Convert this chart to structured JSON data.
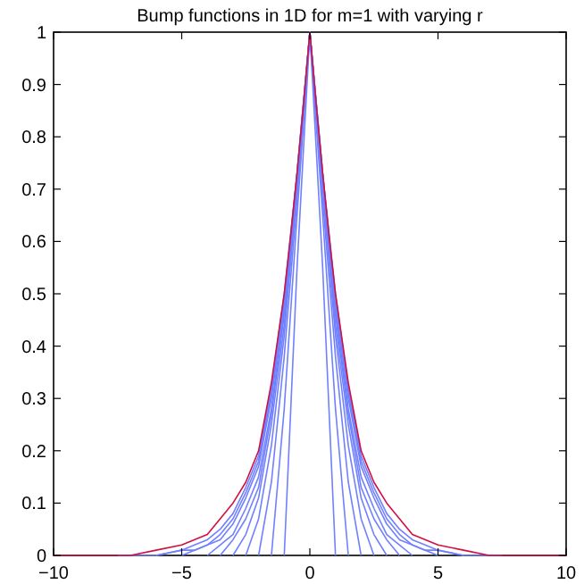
{
  "chart_data": {
    "type": "line",
    "title": "Bump functions in 1D for m=1 with varying r",
    "xlim": [
      -10,
      10
    ],
    "ylim": [
      0,
      1
    ],
    "xticks": [
      {
        "value": -10,
        "label": "−10"
      },
      {
        "value": -5,
        "label": "−5"
      },
      0,
      5,
      10
    ],
    "yticks": [
      0,
      0.1,
      0.2,
      0.3,
      0.4,
      0.5,
      0.6,
      0.7,
      0.8,
      0.9,
      1
    ],
    "grid": false,
    "marker": "none",
    "line_style": "solid",
    "series": [
      {
        "color": "#7080ff",
        "x": [
          -1,
          -0.5,
          0,
          0.5,
          1
        ],
        "values": [
          0,
          0.55,
          1,
          0.55,
          0
        ]
      },
      {
        "color": "#7080ff",
        "x": [
          -1.5,
          -1,
          -0.5,
          0,
          0.5,
          1,
          1.5
        ],
        "values": [
          0,
          0.28,
          0.65,
          1,
          0.65,
          0.28,
          0
        ]
      },
      {
        "color": "#7080ff",
        "x": [
          -2,
          -1.5,
          -1,
          -0.5,
          0,
          0.5,
          1,
          1.5,
          2
        ],
        "values": [
          0,
          0.14,
          0.38,
          0.68,
          1,
          0.68,
          0.38,
          0.14,
          0
        ]
      },
      {
        "color": "#7080ff",
        "x": [
          -2.5,
          -2,
          -1.5,
          -1,
          -0.5,
          0,
          0.5,
          1,
          1.5,
          2,
          2.5
        ],
        "values": [
          0,
          0.07,
          0.21,
          0.42,
          0.7,
          1,
          0.7,
          0.42,
          0.21,
          0.07,
          0
        ]
      },
      {
        "color": "#7080ff",
        "x": [
          -3,
          -2.5,
          -2,
          -1.5,
          -1,
          -0.5,
          0,
          0.5,
          1,
          1.5,
          2,
          2.5,
          3
        ],
        "values": [
          0,
          0.04,
          0.11,
          0.25,
          0.44,
          0.71,
          1,
          0.71,
          0.44,
          0.25,
          0.11,
          0.04,
          0
        ]
      },
      {
        "color": "#7080ff",
        "x": [
          -3.5,
          -3,
          -2.5,
          -2,
          -1.5,
          -1,
          -0.5,
          0,
          0.5,
          1,
          1.5,
          2,
          2.5,
          3,
          3.5
        ],
        "values": [
          0,
          0.03,
          0.07,
          0.13,
          0.27,
          0.46,
          0.72,
          1,
          0.72,
          0.46,
          0.27,
          0.13,
          0.07,
          0.03,
          0
        ]
      },
      {
        "color": "#7080ff",
        "x": [
          -4,
          -3.5,
          -3,
          -2.5,
          -2,
          -1.5,
          -1,
          -0.5,
          0,
          0.5,
          1,
          1.5,
          2,
          2.5,
          3,
          3.5,
          4
        ],
        "values": [
          0,
          0.02,
          0.04,
          0.09,
          0.15,
          0.28,
          0.47,
          0.72,
          1,
          0.72,
          0.47,
          0.28,
          0.15,
          0.09,
          0.04,
          0.02,
          0
        ]
      },
      {
        "color": "#7080ff",
        "x": [
          -5,
          -4.5,
          -4,
          -3.5,
          -3,
          -2.5,
          -2,
          -1.5,
          -1,
          -0.5,
          0,
          0.5,
          1,
          1.5,
          2,
          2.5,
          3,
          3.5,
          4,
          4.5,
          5
        ],
        "values": [
          0,
          0.01,
          0.02,
          0.03,
          0.06,
          0.11,
          0.17,
          0.3,
          0.48,
          0.73,
          1,
          0.73,
          0.48,
          0.3,
          0.17,
          0.11,
          0.06,
          0.03,
          0.02,
          0.01,
          0
        ]
      },
      {
        "color": "#7080ff",
        "x": [
          -6,
          -5,
          -4.5,
          -4,
          -3.5,
          -3,
          -2.5,
          -2,
          -1.5,
          -1,
          -0.5,
          0,
          0.5,
          1,
          1.5,
          2,
          2.5,
          3,
          3.5,
          4,
          4.5,
          5,
          6
        ],
        "values": [
          0,
          0.01,
          0.01,
          0.02,
          0.04,
          0.07,
          0.12,
          0.18,
          0.31,
          0.49,
          0.73,
          1,
          0.73,
          0.49,
          0.31,
          0.18,
          0.12,
          0.07,
          0.04,
          0.02,
          0.01,
          0.01,
          0
        ]
      },
      {
        "color": "#7080ff",
        "x": [
          -7.5,
          -6,
          -5,
          -4.5,
          -4,
          -3.5,
          -3,
          -2.5,
          -2,
          -1.5,
          -1,
          -0.5,
          0,
          0.5,
          1,
          1.5,
          2,
          2.5,
          3,
          3.5,
          4,
          4.5,
          5,
          6,
          7.5
        ],
        "values": [
          0,
          0,
          0.01,
          0.02,
          0.03,
          0.05,
          0.08,
          0.13,
          0.19,
          0.32,
          0.5,
          0.73,
          1,
          0.73,
          0.5,
          0.32,
          0.19,
          0.13,
          0.08,
          0.05,
          0.03,
          0.02,
          0.01,
          0,
          0
        ]
      },
      {
        "color": "#d01040",
        "x": [
          -10,
          -8,
          -7,
          -6,
          -5,
          -4,
          -3.5,
          -3,
          -2.5,
          -2,
          -1.5,
          -1,
          -0.75,
          -0.5,
          -0.25,
          0,
          0.25,
          0.5,
          0.75,
          1,
          1.5,
          2,
          2.5,
          3,
          3.5,
          4,
          5,
          6,
          7,
          8,
          10
        ],
        "values": [
          0,
          0,
          0,
          0.01,
          0.02,
          0.04,
          0.07,
          0.1,
          0.14,
          0.2,
          0.33,
          0.5,
          0.61,
          0.73,
          0.86,
          1,
          0.86,
          0.73,
          0.61,
          0.5,
          0.33,
          0.2,
          0.14,
          0.1,
          0.07,
          0.04,
          0.02,
          0.01,
          0,
          0,
          0
        ]
      }
    ]
  }
}
